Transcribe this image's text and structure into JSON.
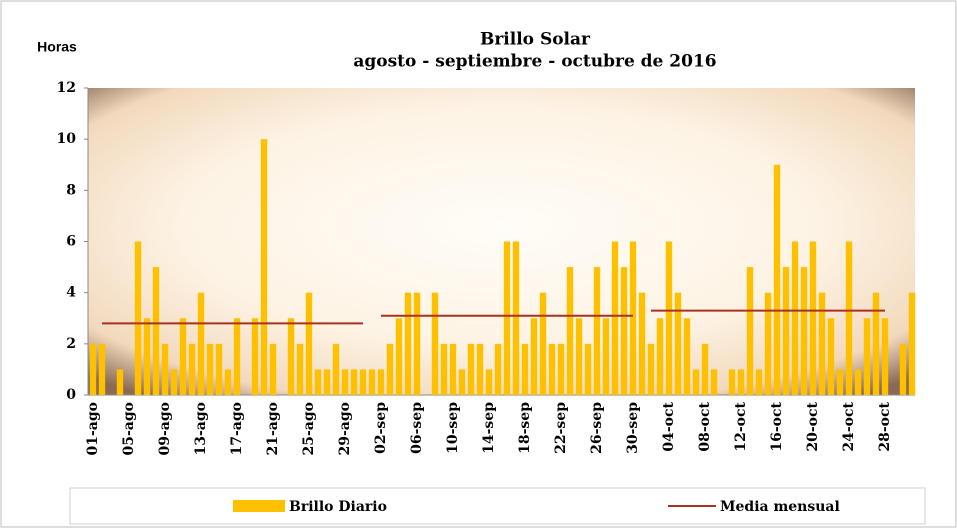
{
  "chart_data": {
    "type": "bar",
    "title": "Brillo  Solar",
    "subtitle": "agosto - septiembre - octubre de 2016",
    "y_label": "Horas",
    "categories": [
      "01-ago",
      null,
      null,
      null,
      "05-ago",
      null,
      null,
      null,
      "09-ago",
      null,
      null,
      null,
      "13-ago",
      null,
      null,
      null,
      "17-ago",
      null,
      null,
      null,
      "21-ago",
      null,
      null,
      null,
      "25-ago",
      null,
      null,
      null,
      "29-ago",
      null,
      null,
      null,
      "02-sep",
      null,
      null,
      null,
      "06-sep",
      null,
      null,
      null,
      "10-sep",
      null,
      null,
      null,
      "14-sep",
      null,
      null,
      null,
      "18-sep",
      null,
      null,
      null,
      "22-sep",
      null,
      null,
      null,
      "26-sep",
      null,
      null,
      null,
      "30-sep",
      null,
      null,
      null,
      "04-oct",
      null,
      null,
      null,
      "08-oct",
      null,
      null,
      null,
      "12-oct",
      null,
      null,
      null,
      "16-oct",
      null,
      null,
      null,
      "20-oct",
      null,
      null,
      null,
      "24-oct",
      null,
      null,
      null,
      "28-oct",
      null,
      null,
      null
    ],
    "series": [
      {
        "name": "Brillo Diario",
        "color": "#FFC000",
        "type": "bar",
        "values": [
          2,
          2,
          0,
          1,
          0,
          6,
          3,
          5,
          2,
          1,
          3,
          2,
          4,
          2,
          2,
          1,
          3,
          0,
          3,
          10,
          2,
          0,
          3,
          2,
          4,
          1,
          1,
          2,
          1,
          1,
          1,
          1,
          1,
          2,
          3,
          4,
          4,
          0,
          4,
          2,
          2,
          1,
          2,
          2,
          1,
          2,
          6,
          6,
          2,
          3,
          4,
          2,
          2,
          5,
          3,
          2,
          5,
          3,
          6,
          5,
          6,
          4,
          2,
          3,
          6,
          4,
          3,
          1,
          2,
          1,
          0,
          1,
          1,
          5,
          1,
          4,
          9,
          5,
          6,
          5,
          6,
          4,
          3,
          1,
          6,
          1,
          3,
          4,
          3,
          0,
          2,
          4
        ]
      },
      {
        "name": "Media mensual",
        "color": "#A8321E",
        "type": "line",
        "values": [
          null,
          2.8,
          2.8,
          2.8,
          2.8,
          2.8,
          2.8,
          2.8,
          2.8,
          2.8,
          2.8,
          2.8,
          2.8,
          2.8,
          2.8,
          2.8,
          2.8,
          2.8,
          2.8,
          2.8,
          2.8,
          2.8,
          2.8,
          2.8,
          2.8,
          2.8,
          2.8,
          2.8,
          2.8,
          2.8,
          2.8,
          null,
          3.1,
          3.1,
          3.1,
          3.1,
          3.1,
          3.1,
          3.1,
          3.1,
          3.1,
          3.1,
          3.1,
          3.1,
          3.1,
          3.1,
          3.1,
          3.1,
          3.1,
          3.1,
          3.1,
          3.1,
          3.1,
          3.1,
          3.1,
          3.1,
          3.1,
          3.1,
          3.1,
          3.1,
          3.1,
          null,
          3.3,
          3.3,
          3.3,
          3.3,
          3.3,
          3.3,
          3.3,
          3.3,
          3.3,
          3.3,
          3.3,
          3.3,
          3.3,
          3.3,
          3.3,
          3.3,
          3.3,
          3.3,
          3.3,
          3.3,
          3.3,
          3.3,
          3.3,
          3.3,
          3.3,
          3.3,
          3.3,
          null,
          null,
          null
        ]
      }
    ],
    "ylim": [
      0,
      12
    ],
    "yticks": [
      0,
      2,
      4,
      6,
      8,
      10,
      12
    ],
    "legend": "bottom"
  }
}
